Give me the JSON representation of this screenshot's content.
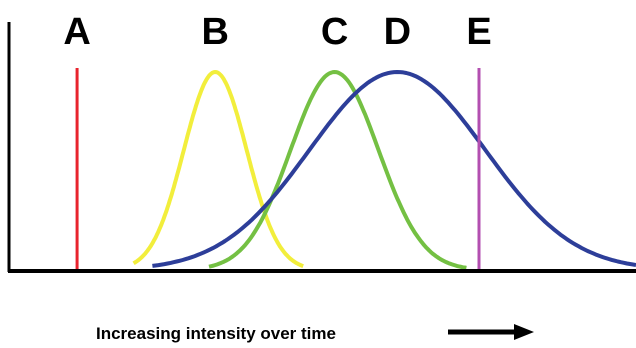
{
  "chart_data": {
    "type": "line",
    "title": "",
    "xlabel": "Increasing intensity over time",
    "ylabel": "",
    "xlim": [
      0,
      100
    ],
    "ylim": [
      0,
      1
    ],
    "grid": false,
    "legend": "none",
    "colors": {
      "A": "#e8232d",
      "B": "#f2ee3c",
      "C": "#74c043",
      "D": "#2d3e99",
      "E": "#b34fb0",
      "axis": "#000000"
    },
    "series": [
      {
        "name": "A",
        "kind": "vline",
        "x": 11
      },
      {
        "name": "B",
        "kind": "curve",
        "mean": 33,
        "sd": 5,
        "peak": 1.0,
        "range": [
          20,
          47
        ]
      },
      {
        "name": "C",
        "kind": "curve",
        "mean": 52,
        "sd": 7,
        "peak": 1.0,
        "range": [
          32,
          73
        ]
      },
      {
        "name": "D",
        "kind": "curve",
        "mean": 62,
        "sd": 14,
        "peak": 1.0,
        "range": [
          23,
          100
        ]
      },
      {
        "name": "E",
        "kind": "vline",
        "x": 75
      }
    ]
  }
}
